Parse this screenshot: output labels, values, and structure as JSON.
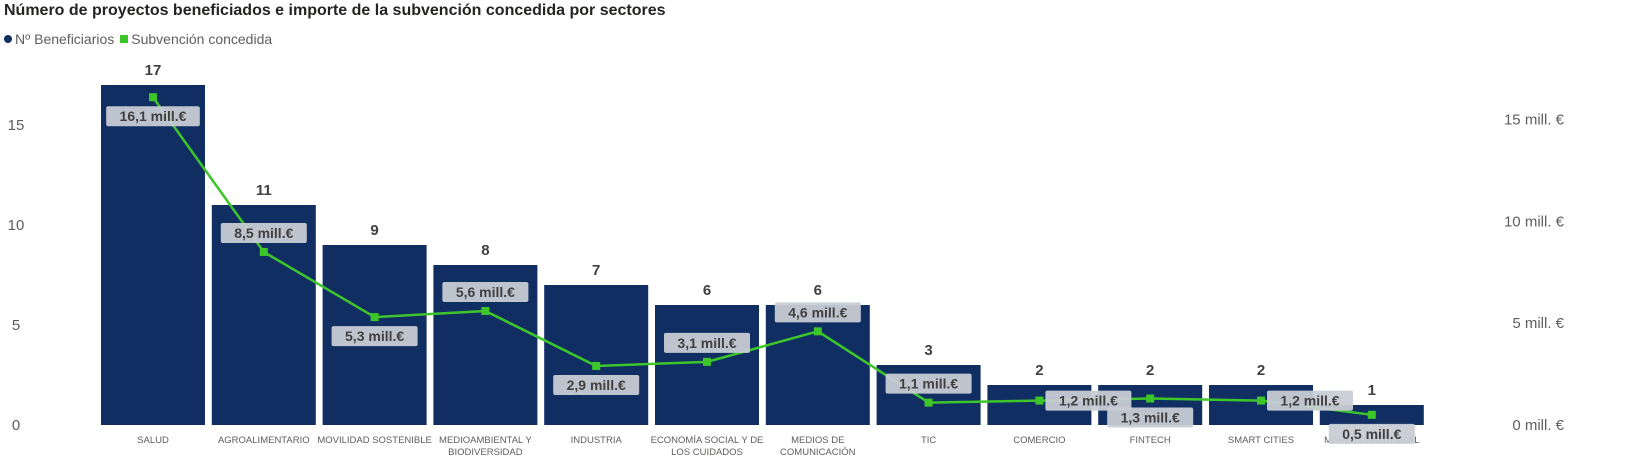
{
  "chart_data": {
    "type": "bar",
    "title": "Número de proyectos beneficiados e importe de la subvención concedida por sectores",
    "categories": [
      "SALUD",
      "AGROALIMENTARIO",
      "MOVILIDAD SOSTENIBLE",
      "MEDIOAMBIENTAL Y BIODIVERSIDAD",
      "INDUSTRIA",
      "ECONOMÍA SOCIAL Y DE LOS CUIDADOS",
      "MEDIOS DE COMUNICACIÓN",
      "TIC",
      "COMERCIO",
      "FINTECH",
      "SMART CITIES",
      "MARKETING DIGITAL"
    ],
    "series": [
      {
        "name": "Nº Beneficiarios",
        "type": "bar",
        "axis": "left",
        "color": "#112E63",
        "values": [
          17,
          11,
          9,
          8,
          7,
          6,
          6,
          3,
          2,
          2,
          2,
          1
        ],
        "labels": [
          "17",
          "11",
          "9",
          "8",
          "7",
          "6",
          "6",
          "3",
          "2",
          "2",
          "2",
          "1"
        ]
      },
      {
        "name": "Subvención concedida",
        "type": "line",
        "axis": "right",
        "color": "#3DC62A",
        "values": [
          16.1,
          8.5,
          5.3,
          5.6,
          2.9,
          3.1,
          4.6,
          1.1,
          1.2,
          1.3,
          1.2,
          0.5
        ],
        "labels": [
          "16,1 mill.€",
          "8,5 mill.€",
          "5,3 mill.€",
          "5,6 mill.€",
          "2,9 mill.€",
          "3,1 mill.€",
          "4,6 mill.€",
          "1,1 mill.€",
          "1,2 mill.€",
          "1,3 mill.€",
          "1,2 mill.€",
          "0,5 mill.€"
        ]
      }
    ],
    "y_left": {
      "ylim": [
        0,
        17
      ],
      "ticks": [
        0,
        5,
        10,
        15
      ],
      "tick_labels": [
        "0",
        "5",
        "10",
        "15"
      ]
    },
    "y_right": {
      "ylim": [
        0,
        16.7
      ],
      "ticks": [
        0,
        5,
        10,
        15
      ],
      "tick_labels": [
        "0 mill. €",
        "5 mill. €",
        "10 mill. €",
        "15 mill. €"
      ]
    },
    "grid": false,
    "legend": "top-left"
  }
}
